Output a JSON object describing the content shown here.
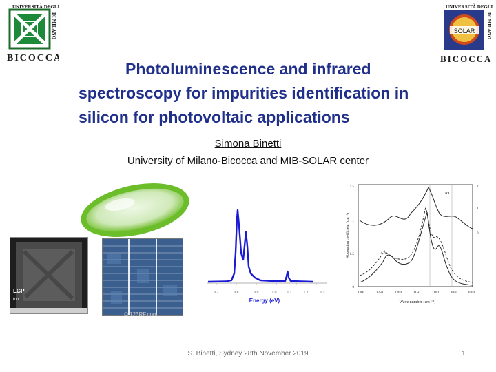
{
  "logos": {
    "left_top": "UNIVERSITÀ DEGLI STUDI",
    "left_side": "DI MILANO",
    "left_bottom": "BICOCCA",
    "right_top": "UNIVERSITÀ DEGLI STUDI",
    "right_badge": "SOLAR",
    "right_side": "DI MILANO",
    "right_bottom": "BICOCCA"
  },
  "title_lines": [
    "Photoluminescence and infrared",
    "spectroscopy for impurities identification  in",
    "silicon for photovoltaic applications"
  ],
  "author": "Simona Binetti",
  "affiliation": "University of  Milano-Bicocca and MIB-SOLAR center",
  "wafer_label": "LGP",
  "wafer_sublabel": "top",
  "watermark": "© 123RF.com",
  "spectrum_xlabel": "Energy (eV)",
  "spectrum_ticks": [
    "0.7",
    "0.8",
    "0.9",
    "1.0",
    "1.1",
    "1.2",
    "1.3"
  ],
  "absorption": {
    "ylabel": "Absorption coefficient (cm⁻¹)",
    "xlabel": "Wave number (cm ⁻¹)",
    "xticks": [
      "1300",
      "1250",
      "1200",
      "1150",
      "1100",
      "1050",
      "1000"
    ],
    "yticks_left": [
      "0",
      "0.5",
      "1",
      "1.5"
    ],
    "yticks_right": [
      "0",
      "1",
      "2"
    ],
    "label_rt": "RT",
    "label_7k": "7 K"
  },
  "footer": "S. Binetti,  Sydney  28th November 2019",
  "page_number": "1",
  "colors": {
    "title": "#1f2f8a",
    "spectrum_line": "#1b1bd6",
    "lens": "#8fd43a"
  }
}
